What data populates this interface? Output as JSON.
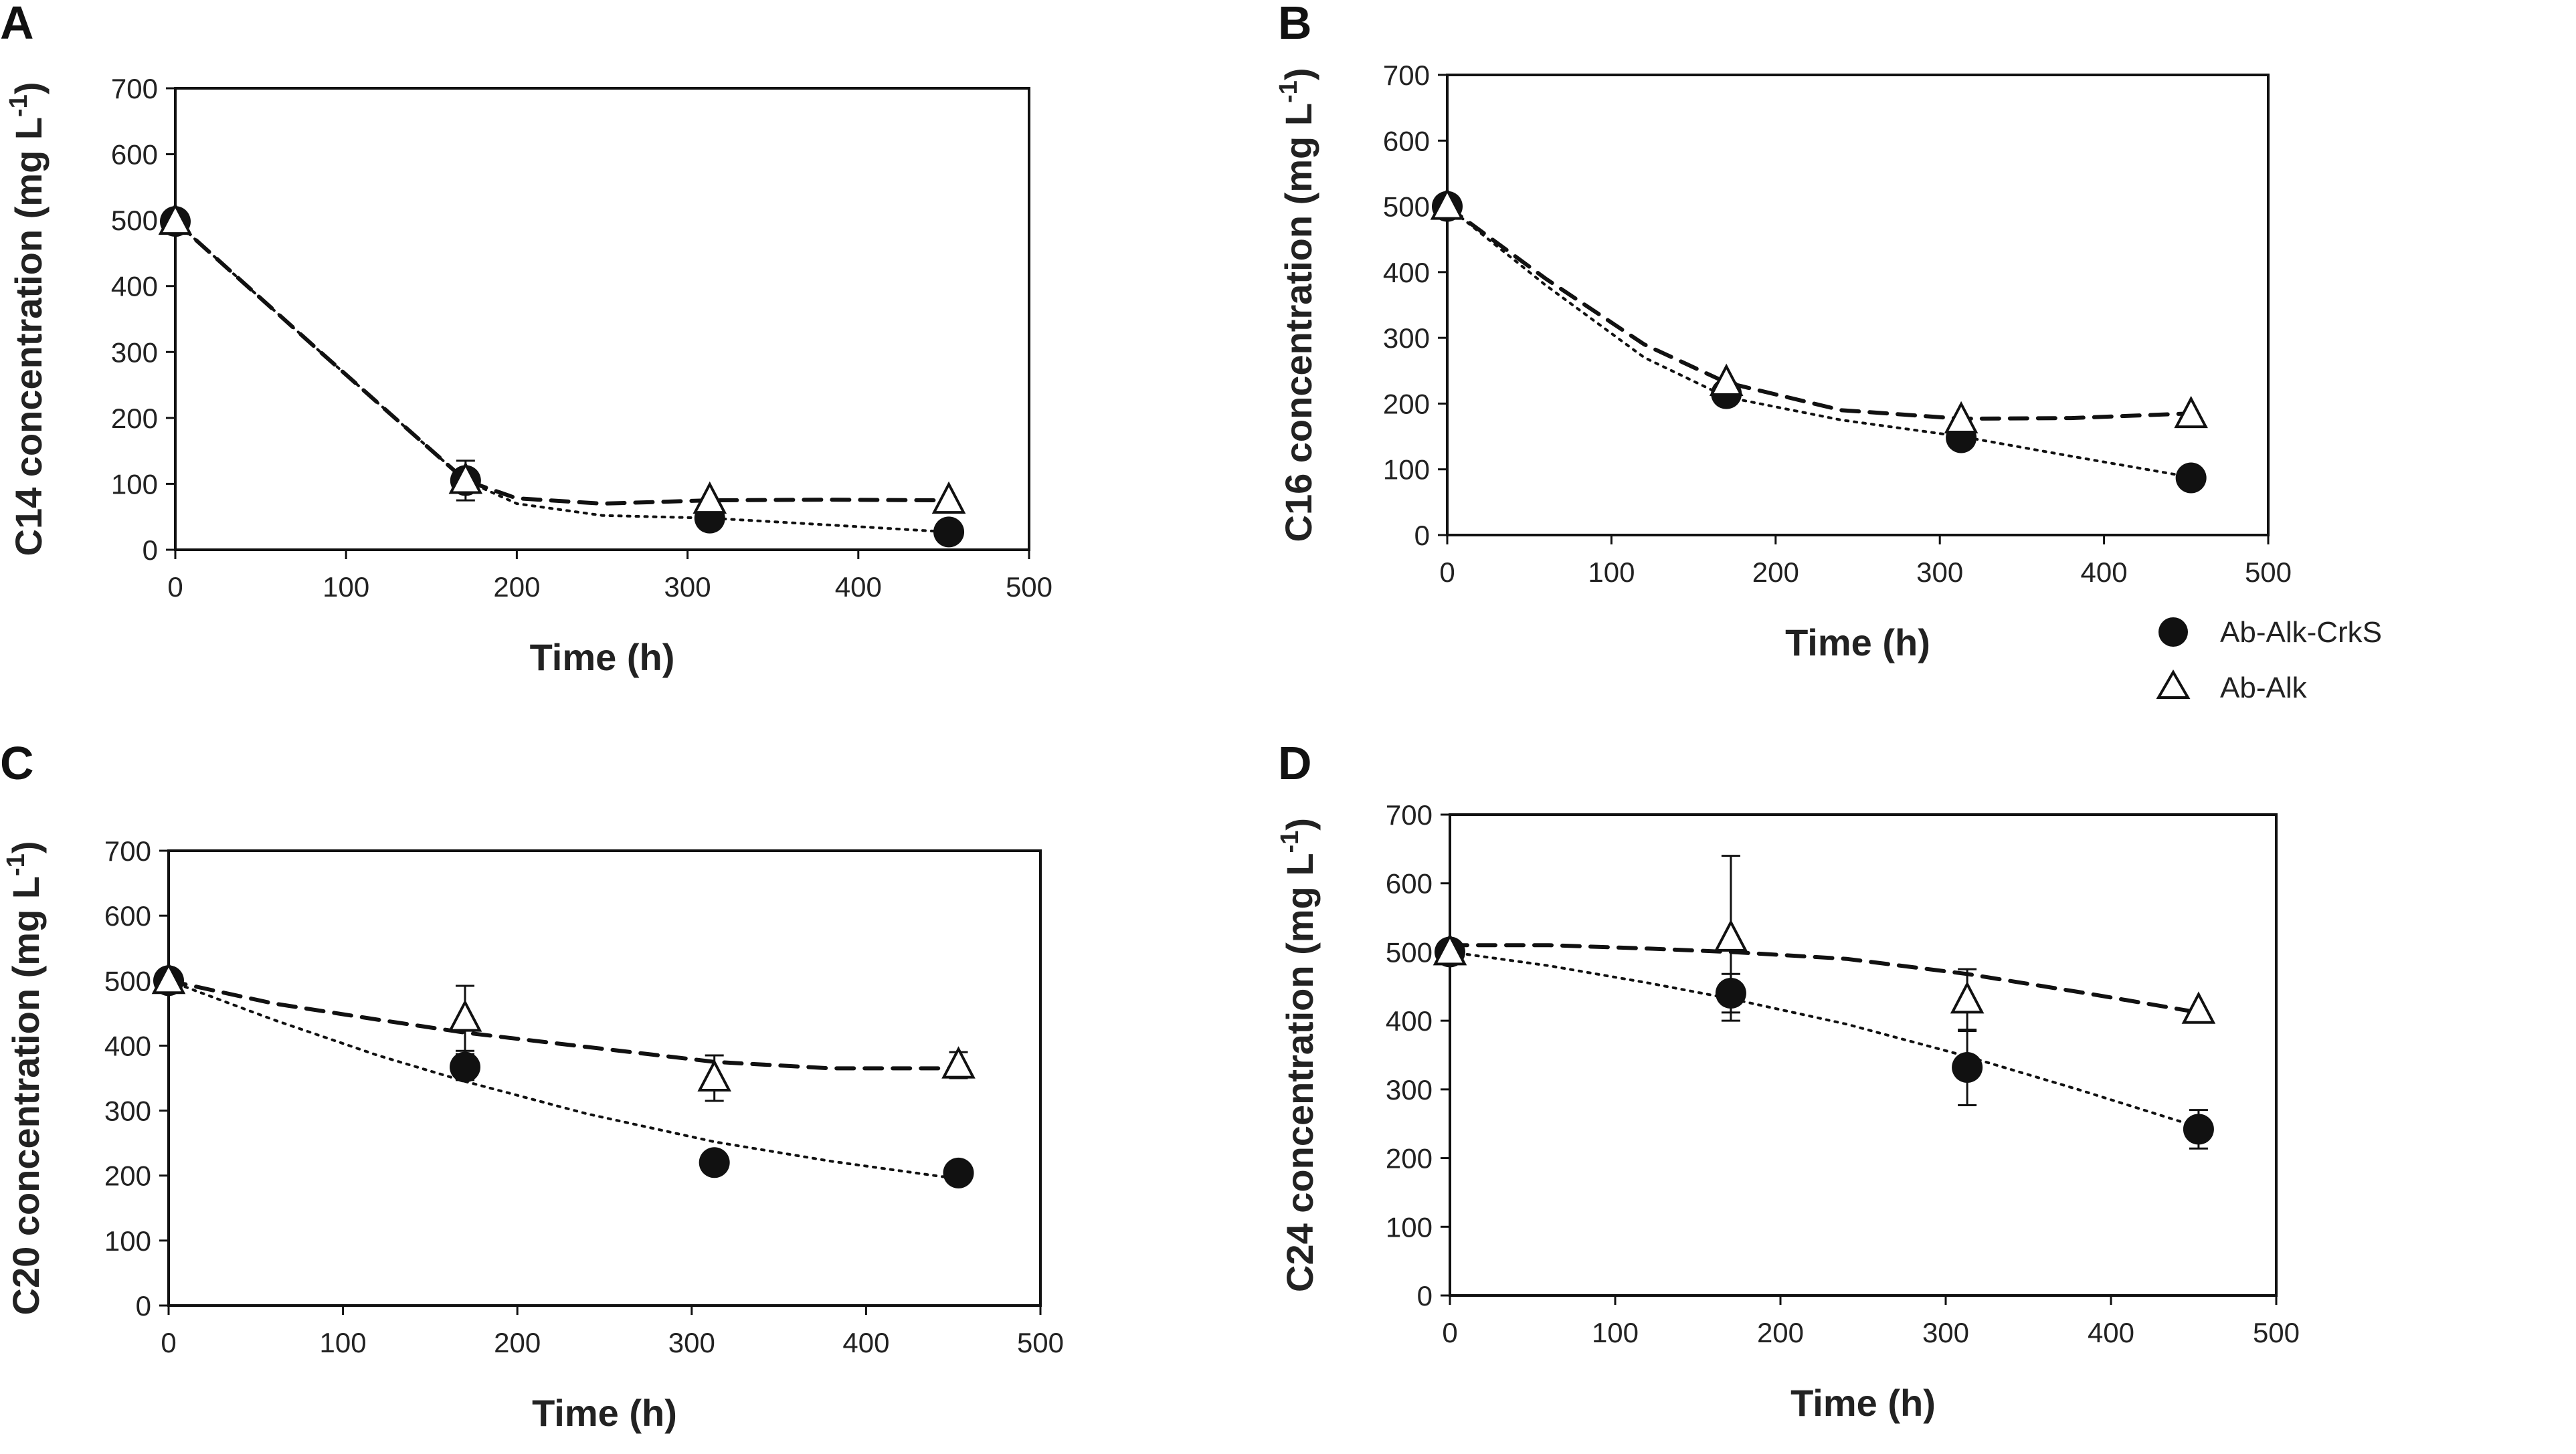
{
  "legend": [
    {
      "label": "Ab-Alk-CrkS",
      "marker": "filled-circle"
    },
    {
      "label": "Ab-Alk",
      "marker": "open-triangle"
    }
  ],
  "chart_data": [
    {
      "panel": "A",
      "type": "scatter",
      "xlabel": "Time (h)",
      "ylabel_main": "C14 concentration (mg L",
      "ylabel_sup": "-1",
      "ylabel_end": ")",
      "xlim": [
        0,
        500
      ],
      "ylim": [
        0,
        700
      ],
      "xticks": [
        0,
        100,
        200,
        300,
        400,
        500
      ],
      "yticks": [
        0,
        100,
        200,
        300,
        400,
        500,
        600,
        700
      ],
      "series": [
        {
          "name": "Ab-Alk-CrkS",
          "marker": "circle",
          "line": "dotted",
          "x": [
            0,
            170,
            313,
            453
          ],
          "y": [
            498,
            105,
            48,
            27
          ],
          "err": [
            0,
            0,
            0,
            0
          ],
          "fit": [
            [
              0,
              498
            ],
            [
              85,
              300
            ],
            [
              170,
              105
            ],
            [
              200,
              70
            ],
            [
              250,
              52
            ],
            [
              313,
              48
            ],
            [
              380,
              38
            ],
            [
              453,
              27
            ]
          ]
        },
        {
          "name": "Ab-Alk",
          "marker": "triangle",
          "line": "dashed",
          "x": [
            0,
            170,
            313,
            453
          ],
          "y": [
            498,
            105,
            75,
            75
          ],
          "err": [
            0,
            30,
            0,
            0
          ],
          "fit": [
            [
              0,
              498
            ],
            [
              85,
              300
            ],
            [
              170,
              105
            ],
            [
              200,
              78
            ],
            [
              250,
              70
            ],
            [
              313,
              75
            ],
            [
              380,
              76
            ],
            [
              453,
              75
            ]
          ]
        }
      ]
    },
    {
      "panel": "B",
      "type": "scatter",
      "xlabel": "Time (h)",
      "ylabel_main": "C16 concentration (mg L",
      "ylabel_sup": "-1",
      "ylabel_end": ")",
      "xlim": [
        0,
        500
      ],
      "ylim": [
        0,
        700
      ],
      "xticks": [
        0,
        100,
        200,
        300,
        400,
        500
      ],
      "yticks": [
        0,
        100,
        200,
        300,
        400,
        500,
        600,
        700
      ],
      "series": [
        {
          "name": "Ab-Alk-CrkS",
          "marker": "circle",
          "line": "dotted",
          "x": [
            0,
            170,
            313,
            453
          ],
          "y": [
            500,
            215,
            148,
            87
          ],
          "err": [
            0,
            0,
            0,
            0
          ],
          "fit": [
            [
              0,
              500
            ],
            [
              60,
              380
            ],
            [
              120,
              270
            ],
            [
              170,
              210
            ],
            [
              240,
              175
            ],
            [
              313,
              150
            ],
            [
              380,
              120
            ],
            [
              453,
              88
            ]
          ]
        },
        {
          "name": "Ab-Alk",
          "marker": "triangle",
          "line": "dashed",
          "x": [
            0,
            170,
            313,
            453
          ],
          "y": [
            500,
            232,
            175,
            183
          ],
          "err": [
            0,
            0,
            0,
            0
          ],
          "fit": [
            [
              0,
              500
            ],
            [
              60,
              390
            ],
            [
              120,
              290
            ],
            [
              170,
              232
            ],
            [
              240,
              190
            ],
            [
              313,
              177
            ],
            [
              380,
              178
            ],
            [
              453,
              185
            ]
          ]
        }
      ]
    },
    {
      "panel": "C",
      "type": "scatter",
      "xlabel": "Time (h)",
      "ylabel_main": "C20 concentration (mg L",
      "ylabel_sup": "-1",
      "ylabel_end": ")",
      "xlim": [
        0,
        500
      ],
      "ylim": [
        0,
        700
      ],
      "xticks": [
        0,
        100,
        200,
        300,
        400,
        500
      ],
      "yticks": [
        0,
        100,
        200,
        300,
        400,
        500,
        600,
        700
      ],
      "series": [
        {
          "name": "Ab-Alk-CrkS",
          "marker": "circle",
          "line": "dotted",
          "x": [
            0,
            170,
            313,
            453
          ],
          "y": [
            500,
            367,
            220,
            204
          ],
          "err": [
            0,
            20,
            0,
            0
          ],
          "fit": [
            [
              0,
              500
            ],
            [
              60,
              440
            ],
            [
              120,
              385
            ],
            [
              170,
              345
            ],
            [
              240,
              295
            ],
            [
              313,
              252
            ],
            [
              380,
              222
            ],
            [
              453,
              195
            ]
          ]
        },
        {
          "name": "Ab-Alk",
          "marker": "triangle",
          "line": "dashed",
          "x": [
            0,
            170,
            313,
            453
          ],
          "y": [
            500,
            442,
            350,
            370
          ],
          "err": [
            0,
            50,
            35,
            20
          ],
          "fit": [
            [
              0,
              500
            ],
            [
              60,
              465
            ],
            [
              120,
              440
            ],
            [
              170,
              420
            ],
            [
              240,
              398
            ],
            [
              313,
              375
            ],
            [
              380,
              365
            ],
            [
              453,
              365
            ]
          ]
        }
      ]
    },
    {
      "panel": "D",
      "type": "scatter",
      "xlabel": "Time (h)",
      "ylabel_main": "C24 concentration (mg L",
      "ylabel_sup": "-1",
      "ylabel_end": ")",
      "xlim": [
        0,
        500
      ],
      "ylim": [
        0,
        700
      ],
      "xticks": [
        0,
        100,
        200,
        300,
        400,
        500
      ],
      "yticks": [
        0,
        100,
        200,
        300,
        400,
        500,
        600,
        700
      ],
      "series": [
        {
          "name": "Ab-Alk-CrkS",
          "marker": "circle",
          "line": "dotted",
          "x": [
            0,
            170,
            313,
            453
          ],
          "y": [
            500,
            440,
            332,
            242
          ],
          "err": [
            0,
            28,
            55,
            28
          ],
          "fit": [
            [
              0,
              500
            ],
            [
              60,
              480
            ],
            [
              120,
              455
            ],
            [
              170,
              432
            ],
            [
              240,
              395
            ],
            [
              313,
              348
            ],
            [
              380,
              300
            ],
            [
              453,
              245
            ]
          ]
        },
        {
          "name": "Ab-Alk",
          "marker": "triangle",
          "line": "dashed",
          "x": [
            0,
            170,
            313,
            453
          ],
          "y": [
            500,
            520,
            430,
            415
          ],
          "err": [
            0,
            120,
            45,
            0
          ],
          "fit": [
            [
              0,
              510
            ],
            [
              60,
              510
            ],
            [
              120,
              505
            ],
            [
              170,
              500
            ],
            [
              240,
              490
            ],
            [
              313,
              468
            ],
            [
              380,
              442
            ],
            [
              453,
              412
            ]
          ]
        }
      ]
    }
  ]
}
